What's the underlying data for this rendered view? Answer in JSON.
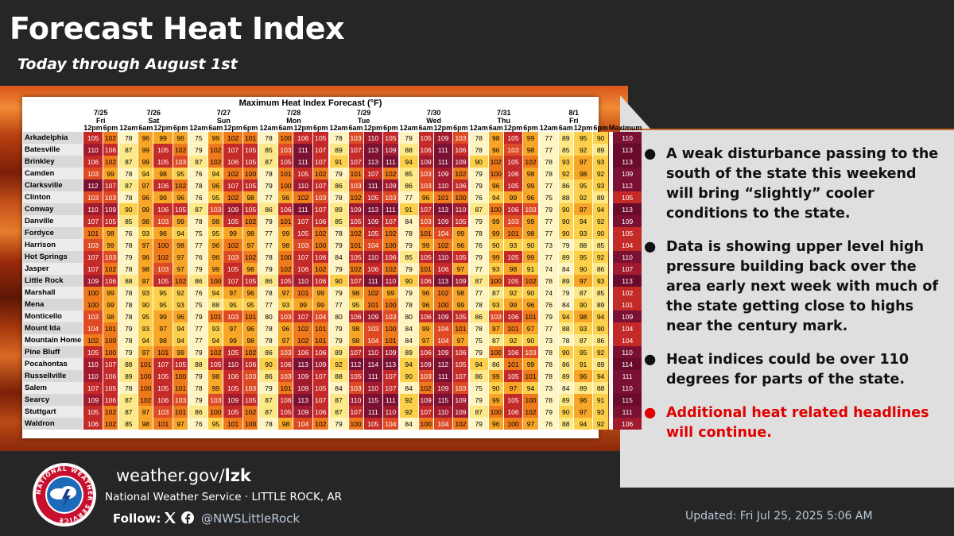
{
  "header": {
    "title": "Forecast Heat Index",
    "subtitle": "Today through August 1st"
  },
  "chart_data": {
    "type": "table",
    "title": "Maximum Heat Index Forecast (°F)",
    "days": [
      {
        "date": "7/25",
        "day": "Fri",
        "times": [
          "12pm",
          "6pm"
        ]
      },
      {
        "date": "7/26",
        "day": "Sat",
        "times": [
          "12am",
          "6am",
          "12pm",
          "6pm"
        ]
      },
      {
        "date": "7/27",
        "day": "Sun",
        "times": [
          "12am",
          "6am",
          "12pm",
          "6pm"
        ]
      },
      {
        "date": "7/28",
        "day": "Mon",
        "times": [
          "12am",
          "6am",
          "12pm",
          "6pm"
        ]
      },
      {
        "date": "7/29",
        "day": "Tue",
        "times": [
          "12am",
          "6am",
          "12pm",
          "6pm"
        ]
      },
      {
        "date": "7/30",
        "day": "Wed",
        "times": [
          "12am",
          "6am",
          "12pm",
          "6pm"
        ]
      },
      {
        "date": "7/31",
        "day": "Thu",
        "times": [
          "12am",
          "6am",
          "12pm",
          "6pm"
        ]
      },
      {
        "date": "8/1",
        "day": "Fri",
        "times": [
          "12am",
          "6am",
          "12pm",
          "6pm"
        ]
      }
    ],
    "max_label": "Maximum",
    "rows": [
      {
        "city": "Arkadelphia",
        "values": [
          105,
          102,
          78,
          96,
          99,
          96,
          75,
          99,
          102,
          101,
          78,
          100,
          106,
          105,
          78,
          103,
          110,
          105,
          79,
          105,
          109,
          103,
          78,
          98,
          105,
          99,
          77,
          89,
          95,
          90
        ],
        "max": 110
      },
      {
        "city": "Batesville",
        "values": [
          110,
          106,
          87,
          99,
          105,
          102,
          79,
          102,
          107,
          105,
          85,
          103,
          111,
          107,
          89,
          107,
          113,
          109,
          88,
          106,
          111,
          106,
          78,
          96,
          103,
          98,
          77,
          85,
          92,
          89
        ],
        "max": 113
      },
      {
        "city": "Brinkley",
        "values": [
          106,
          102,
          87,
          99,
          105,
          103,
          87,
          102,
          106,
          105,
          87,
          105,
          111,
          107,
          91,
          107,
          113,
          111,
          94,
          109,
          111,
          109,
          90,
          102,
          105,
          102,
          78,
          93,
          97,
          93
        ],
        "max": 113
      },
      {
        "city": "Camden",
        "values": [
          103,
          99,
          78,
          94,
          98,
          95,
          76,
          94,
          102,
          100,
          78,
          101,
          105,
          102,
          79,
          101,
          107,
          102,
          85,
          103,
          109,
          102,
          79,
          100,
          106,
          98,
          78,
          92,
          98,
          92
        ],
        "max": 109
      },
      {
        "city": "Clarksville",
        "values": [
          112,
          107,
          87,
          97,
          106,
          102,
          78,
          96,
          107,
          105,
          79,
          100,
          110,
          107,
          86,
          103,
          111,
          109,
          86,
          103,
          110,
          106,
          79,
          96,
          105,
          99,
          77,
          86,
          95,
          93
        ],
        "max": 112
      },
      {
        "city": "Clinton",
        "values": [
          103,
          103,
          78,
          96,
          99,
          96,
          76,
          95,
          102,
          98,
          77,
          96,
          102,
          103,
          78,
          102,
          105,
          103,
          77,
          96,
          101,
          100,
          76,
          94,
          99,
          96,
          75,
          88,
          92,
          89
        ],
        "max": 105
      },
      {
        "city": "Conway",
        "values": [
          110,
          109,
          90,
          99,
          106,
          105,
          87,
          103,
          109,
          105,
          86,
          106,
          111,
          107,
          89,
          109,
          113,
          111,
          91,
          107,
          113,
          110,
          87,
          100,
          106,
          103,
          79,
          90,
          97,
          94
        ],
        "max": 113
      },
      {
        "city": "Danville",
        "values": [
          107,
          105,
          85,
          98,
          103,
          99,
          78,
          98,
          105,
          102,
          79,
          101,
          107,
          106,
          85,
          105,
          109,
          107,
          84,
          103,
          109,
          105,
          79,
          99,
          103,
          99,
          77,
          90,
          94,
          92
        ],
        "max": 109
      },
      {
        "city": "Fordyce",
        "values": [
          101,
          98,
          76,
          93,
          96,
          94,
          75,
          95,
          99,
          98,
          77,
          99,
          105,
          102,
          78,
          102,
          105,
          102,
          78,
          101,
          104,
          99,
          78,
          99,
          101,
          98,
          77,
          90,
          93,
          90
        ],
        "max": 105
      },
      {
        "city": "Harrison",
        "values": [
          103,
          99,
          78,
          97,
          100,
          98,
          77,
          96,
          102,
          97,
          77,
          98,
          103,
          100,
          79,
          101,
          104,
          100,
          79,
          99,
          102,
          96,
          76,
          90,
          93,
          90,
          73,
          79,
          88,
          85
        ],
        "max": 104
      },
      {
        "city": "Hot Springs",
        "values": [
          107,
          103,
          79,
          96,
          102,
          97,
          76,
          96,
          103,
          102,
          78,
          100,
          107,
          106,
          84,
          105,
          110,
          106,
          85,
          105,
          110,
          105,
          79,
          99,
          105,
          99,
          77,
          89,
          95,
          92
        ],
        "max": 110
      },
      {
        "city": "Jasper",
        "values": [
          107,
          102,
          78,
          98,
          103,
          97,
          79,
          99,
          105,
          98,
          79,
          102,
          106,
          102,
          79,
          102,
          106,
          102,
          79,
          101,
          106,
          97,
          77,
          93,
          98,
          91,
          74,
          84,
          90,
          86
        ],
        "max": 107
      },
      {
        "city": "Little Rock",
        "values": [
          109,
          106,
          88,
          97,
          105,
          102,
          86,
          100,
          107,
          105,
          86,
          105,
          110,
          106,
          90,
          107,
          111,
          110,
          90,
          106,
          113,
          109,
          87,
          100,
          105,
          102,
          78,
          89,
          97,
          93
        ],
        "max": 113
      },
      {
        "city": "Marshall",
        "values": [
          100,
          99,
          78,
          93,
          95,
          92,
          76,
          94,
          97,
          96,
          78,
          97,
          101,
          99,
          79,
          98,
          102,
          99,
          79,
          96,
          102,
          98,
          77,
          87,
          92,
          90,
          74,
          79,
          87,
          85
        ],
        "max": 102
      },
      {
        "city": "Mena",
        "values": [
          100,
          99,
          78,
          90,
          95,
          93,
          75,
          88,
          95,
          95,
          77,
          93,
          99,
          99,
          77,
          95,
          101,
          100,
          78,
          96,
          100,
          99,
          78,
          93,
          99,
          96,
          76,
          84,
          90,
          89
        ],
        "max": 101
      },
      {
        "city": "Monticello",
        "values": [
          103,
          98,
          78,
          95,
          99,
          96,
          79,
          101,
          103,
          101,
          80,
          103,
          107,
          104,
          80,
          106,
          109,
          103,
          80,
          106,
          109,
          105,
          86,
          103,
          106,
          101,
          79,
          94,
          98,
          94
        ],
        "max": 109
      },
      {
        "city": "Mount Ida",
        "values": [
          104,
          101,
          79,
          93,
          97,
          94,
          77,
          93,
          97,
          96,
          78,
          96,
          102,
          101,
          79,
          98,
          103,
          100,
          84,
          99,
          104,
          101,
          78,
          97,
          101,
          97,
          77,
          88,
          93,
          90
        ],
        "max": 104
      },
      {
        "city": "Mountain Home",
        "values": [
          102,
          100,
          78,
          94,
          98,
          94,
          77,
          94,
          99,
          98,
          78,
          97,
          102,
          101,
          79,
          98,
          104,
          101,
          84,
          97,
          104,
          97,
          75,
          87,
          92,
          90,
          73,
          78,
          87,
          86
        ],
        "max": 104
      },
      {
        "city": "Pine Bluff",
        "values": [
          105,
          100,
          79,
          97,
          101,
          99,
          79,
          102,
          105,
          102,
          86,
          103,
          106,
          106,
          89,
          107,
          110,
          109,
          89,
          106,
          109,
          106,
          79,
          100,
          106,
          103,
          78,
          90,
          95,
          92
        ],
        "max": 110
      },
      {
        "city": "Pocahontas",
        "values": [
          110,
          107,
          88,
          101,
          107,
          105,
          88,
          105,
          110,
          106,
          90,
          106,
          113,
          109,
          92,
          112,
          114,
          113,
          94,
          109,
          112,
          105,
          94,
          86,
          101,
          99,
          78,
          86,
          91,
          89
        ],
        "max": 114
      },
      {
        "city": "Russellville",
        "values": [
          110,
          106,
          89,
          100,
          105,
          100,
          79,
          98,
          106,
          103,
          86,
          103,
          109,
          107,
          88,
          105,
          111,
          107,
          90,
          103,
          111,
          107,
          86,
          99,
          105,
          101,
          78,
          89,
          96,
          94
        ],
        "max": 111
      },
      {
        "city": "Salem",
        "values": [
          107,
          105,
          78,
          100,
          105,
          101,
          78,
          99,
          105,
          103,
          79,
          101,
          109,
          105,
          84,
          103,
          110,
          107,
          84,
          102,
          109,
          103,
          75,
          90,
          97,
          94,
          73,
          84,
          89,
          88
        ],
        "max": 110
      },
      {
        "city": "Searcy",
        "values": [
          109,
          106,
          87,
          102,
          106,
          103,
          79,
          103,
          109,
          105,
          87,
          106,
          113,
          107,
          87,
          110,
          115,
          111,
          92,
          109,
          115,
          109,
          79,
          99,
          105,
          100,
          78,
          89,
          96,
          91
        ],
        "max": 115
      },
      {
        "city": "Stuttgart",
        "values": [
          105,
          102,
          87,
          97,
          103,
          101,
          86,
          100,
          105,
          102,
          87,
          105,
          109,
          106,
          87,
          107,
          111,
          110,
          92,
          107,
          110,
          109,
          87,
          100,
          106,
          102,
          79,
          90,
          97,
          93
        ],
        "max": 111
      },
      {
        "city": "Waldron",
        "values": [
          106,
          102,
          85,
          98,
          101,
          97,
          76,
          95,
          101,
          100,
          78,
          98,
          104,
          102,
          79,
          100,
          105,
          104,
          84,
          100,
          104,
          102,
          79,
          96,
          100,
          97,
          76,
          88,
          94,
          92
        ],
        "max": 106
      }
    ]
  },
  "bullets": [
    {
      "text": "A weak disturbance passing to the south of the state this weekend will bring “slightly” cooler conditions to the state.",
      "color": "#111111"
    },
    {
      "text": "Data is showing upper level high pressure building back over the area early next week with much of the state getting close to highs near the century mark.",
      "color": "#111111"
    },
    {
      "text": "Heat indices could be over 110 degrees for parts of the state.",
      "color": "#111111"
    },
    {
      "text": "Additional heat related headlines will continue.",
      "color": "#e00000"
    }
  ],
  "bullet_symbol": "●",
  "footer": {
    "url_prefix": "weather.gov/",
    "url_suffix": "lzk",
    "office": "National Weather Service · LITTLE ROCK, AR",
    "follow": "Follow:",
    "handle": "@NWSLittleRock",
    "updated": "Updated: Fri Jul 25, 2025 5:06 AM",
    "logo_text": "NATIONAL WEATHER SERVICE"
  },
  "colors": {
    "background": "#262626",
    "panel": "#dfdfdf",
    "accent_text": "#b9c9da",
    "headline_red": "#e00000"
  },
  "icons": [
    "nws-logo",
    "x-icon",
    "facebook-icon"
  ]
}
